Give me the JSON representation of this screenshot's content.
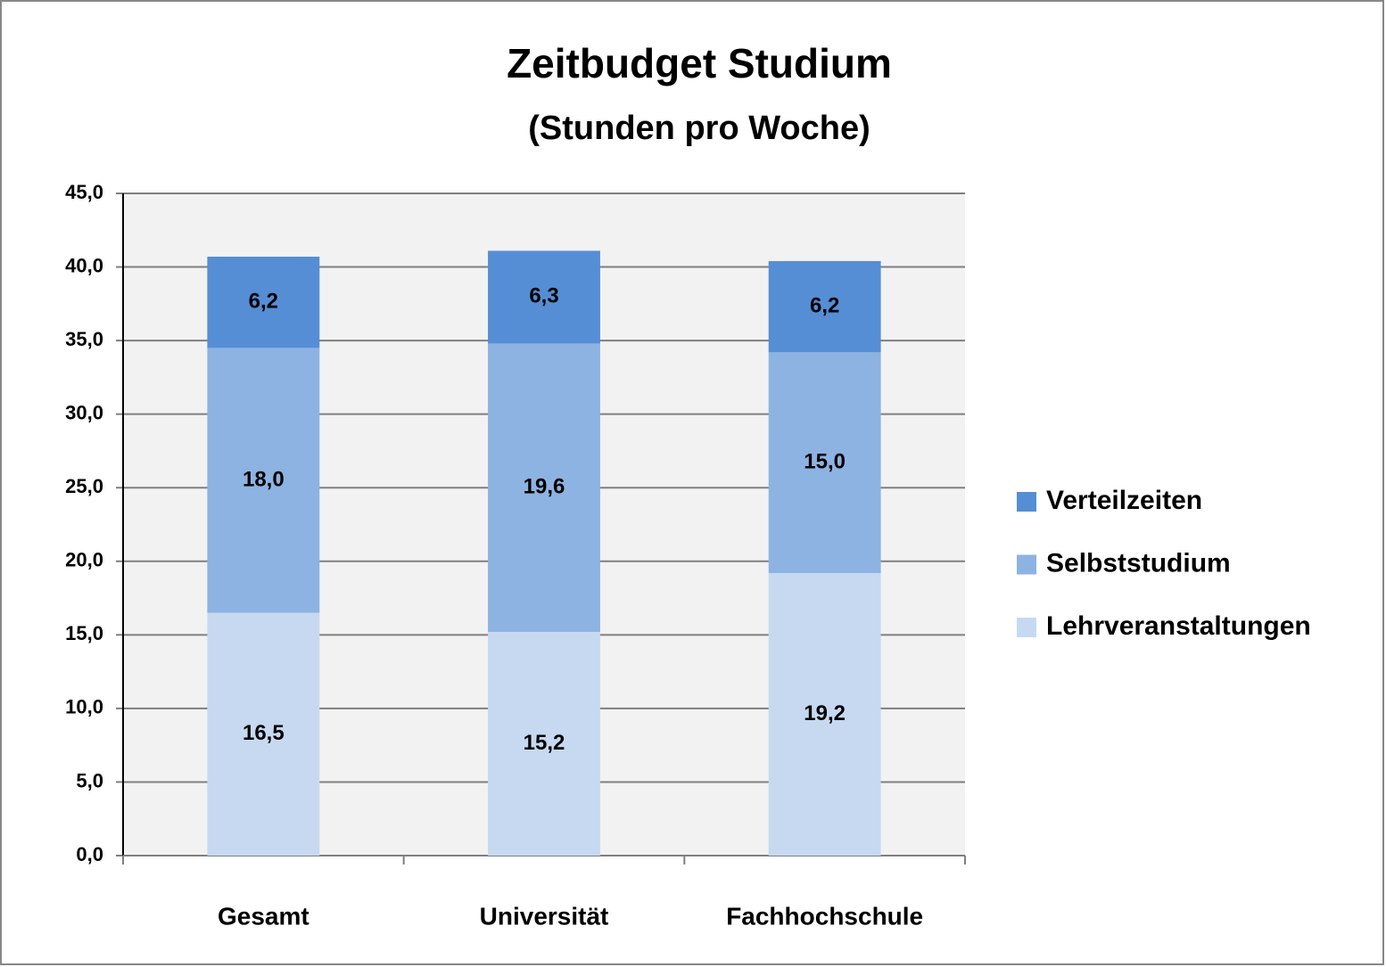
{
  "chart_data": {
    "type": "stacked-bar",
    "title": "Zeitbudget Studium",
    "subtitle": "(Stunden pro Woche)",
    "categories": [
      "Gesamt",
      "Universität",
      "Fachhochschule"
    ],
    "series": [
      {
        "name": "Lehrveranstaltungen",
        "color": "#c6d9f1",
        "values": [
          16.5,
          15.2,
          19.2
        ],
        "value_labels": [
          "16,5",
          "15,2",
          "19,2"
        ]
      },
      {
        "name": "Selbststudium",
        "color": "#8db3e2",
        "values": [
          18.0,
          19.6,
          15.0
        ],
        "value_labels": [
          "18,0",
          "19,6",
          "15,0"
        ]
      },
      {
        "name": "Verteilzeiten",
        "color": "#558ed5",
        "values": [
          6.2,
          6.3,
          6.2
        ],
        "value_labels": [
          "6,2",
          "6,3",
          "6,2"
        ]
      }
    ],
    "ylim": [
      0,
      45
    ],
    "yticks": [
      {
        "value": 0,
        "label": "0,0"
      },
      {
        "value": 5,
        "label": "5,0"
      },
      {
        "value": 10,
        "label": "10,0"
      },
      {
        "value": 15,
        "label": "15,0"
      },
      {
        "value": 20,
        "label": "20,0"
      },
      {
        "value": 25,
        "label": "25,0"
      },
      {
        "value": 30,
        "label": "30,0"
      },
      {
        "value": 35,
        "label": "35,0"
      },
      {
        "value": 40,
        "label": "40,0"
      },
      {
        "value": 45,
        "label": "45,0"
      }
    ],
    "grid": true,
    "legend": "right"
  }
}
